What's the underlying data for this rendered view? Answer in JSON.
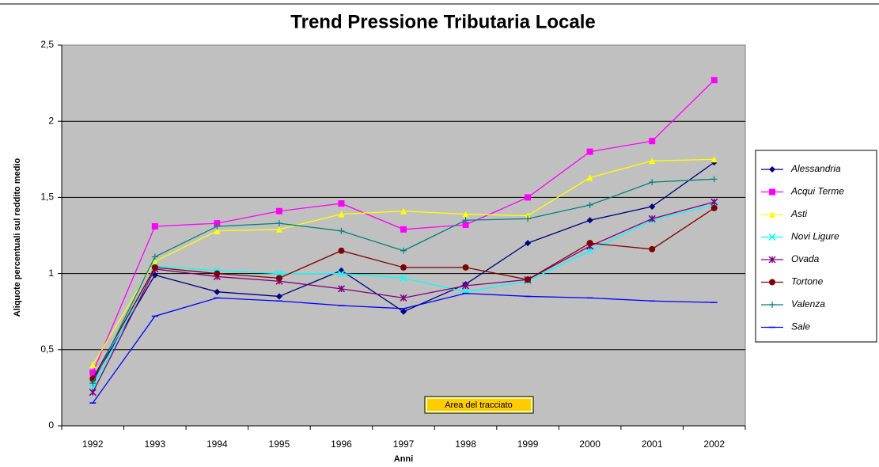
{
  "chart_data": {
    "type": "line",
    "title": "Trend Pressione Tributaria Locale",
    "x_label": "Anni",
    "y_label": "Aliquote percentuali sul reddito medio",
    "annotation": "Area del tracciato",
    "categories": [
      "1992",
      "1993",
      "1994",
      "1995",
      "1996",
      "1997",
      "1998",
      "1999",
      "2000",
      "2001",
      "2002"
    ],
    "ylim": [
      0,
      2.5
    ],
    "yticks": [
      0,
      {
        "value": 0.5,
        "label": "0,5"
      },
      1,
      {
        "value": 1.5,
        "label": "1,5"
      },
      2,
      {
        "value": 2.5,
        "label": "2,5"
      }
    ],
    "grid": true,
    "legend": "right",
    "series": [
      {
        "name": "Alessandria",
        "color": "#000080",
        "marker": "diamond",
        "values": [
          0.3,
          0.99,
          0.88,
          0.85,
          1.02,
          0.75,
          0.93,
          1.2,
          1.35,
          1.44,
          1.73
        ]
      },
      {
        "name": "Acqui Terme",
        "color": "#ff00ff",
        "marker": "square",
        "values": [
          0.35,
          1.31,
          1.33,
          1.41,
          1.46,
          1.29,
          1.32,
          1.5,
          1.8,
          1.87,
          2.27
        ]
      },
      {
        "name": "Asti",
        "color": "#ffff00",
        "marker": "triangle",
        "values": [
          0.4,
          1.08,
          1.28,
          1.29,
          1.39,
          1.41,
          1.39,
          1.38,
          1.63,
          1.74,
          1.75
        ]
      },
      {
        "name": "Novi Ligure",
        "color": "#00ffff",
        "marker": "x",
        "values": [
          0.25,
          1.05,
          1.02,
          1.0,
          1.0,
          0.97,
          0.88,
          0.95,
          1.15,
          1.35,
          1.45
        ]
      },
      {
        "name": "Ovada",
        "color": "#800080",
        "marker": "star",
        "values": [
          0.22,
          1.03,
          0.98,
          0.95,
          0.9,
          0.84,
          0.92,
          0.96,
          1.18,
          1.36,
          1.47
        ]
      },
      {
        "name": "Tortone",
        "color": "#800000",
        "marker": "circle",
        "values": [
          0.31,
          1.04,
          1.0,
          0.97,
          1.15,
          1.04,
          1.04,
          0.96,
          1.2,
          1.16,
          1.43
        ]
      },
      {
        "name": "Valenza",
        "color": "#008080",
        "marker": "plus",
        "values": [
          0.28,
          1.11,
          1.31,
          1.33,
          1.28,
          1.15,
          1.35,
          1.36,
          1.45,
          1.6,
          1.62
        ]
      },
      {
        "name": "Sale",
        "color": "#0000ff",
        "marker": "dash",
        "values": [
          0.15,
          0.72,
          0.84,
          0.82,
          0.79,
          0.77,
          0.87,
          0.85,
          0.84,
          0.82,
          0.81
        ]
      }
    ]
  }
}
